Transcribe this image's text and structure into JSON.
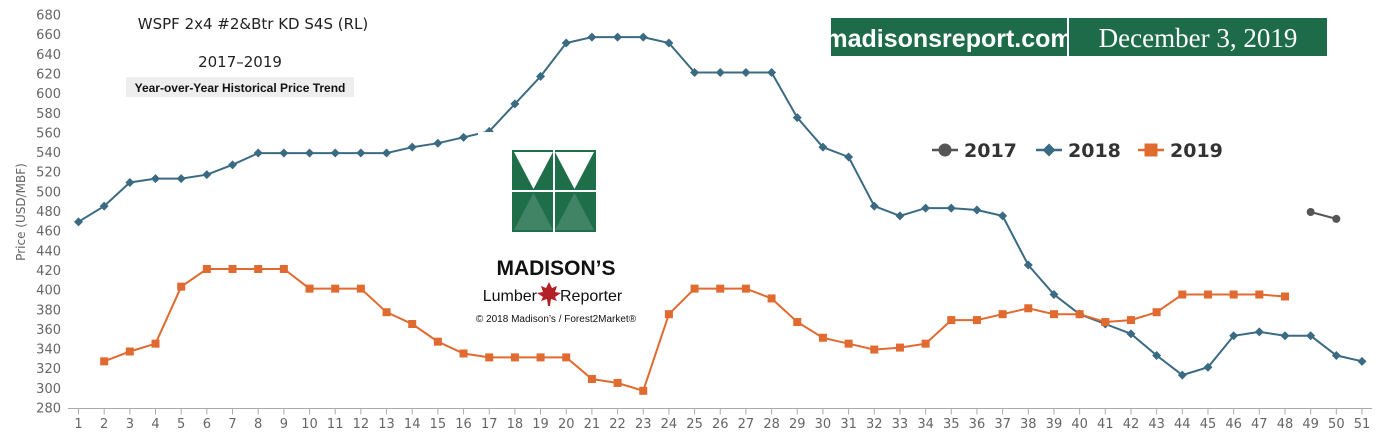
{
  "chart_data": {
    "type": "line",
    "title": "WSPF 2x4 #2&Btr KD S4S (RL)",
    "subtitle": "2017–2019",
    "caption": "Year-over-Year Historical Price Trend",
    "xlabel": "",
    "ylabel": "Price (USD/MBF)",
    "ylim": [
      280,
      680
    ],
    "yticks": [
      280,
      300,
      320,
      340,
      360,
      380,
      400,
      420,
      440,
      460,
      480,
      500,
      520,
      540,
      560,
      580,
      600,
      620,
      640,
      660,
      680
    ],
    "x": [
      1,
      2,
      3,
      4,
      5,
      6,
      7,
      8,
      9,
      10,
      11,
      12,
      13,
      14,
      15,
      16,
      17,
      18,
      19,
      20,
      21,
      22,
      23,
      24,
      25,
      26,
      27,
      28,
      29,
      30,
      31,
      32,
      33,
      34,
      35,
      36,
      37,
      38,
      39,
      40,
      41,
      42,
      43,
      44,
      45,
      46,
      47,
      48,
      49,
      50,
      51
    ],
    "grid": false,
    "legend": "right",
    "series": [
      {
        "name": "2017",
        "color": "#555555",
        "marker": "circle",
        "points": [
          [
            49,
            480
          ],
          [
            50,
            473
          ]
        ]
      },
      {
        "name": "2018",
        "color": "#3a6b82",
        "marker": "diamond",
        "points": [
          [
            1,
            470
          ],
          [
            2,
            486
          ],
          [
            3,
            510
          ],
          [
            4,
            514
          ],
          [
            5,
            514
          ],
          [
            6,
            518
          ],
          [
            7,
            528
          ],
          [
            8,
            540
          ],
          [
            9,
            540
          ],
          [
            10,
            540
          ],
          [
            11,
            540
          ],
          [
            12,
            540
          ],
          [
            13,
            540
          ],
          [
            14,
            546
          ],
          [
            15,
            550
          ],
          [
            16,
            556
          ],
          [
            17,
            562
          ],
          [
            18,
            590
          ],
          [
            19,
            618
          ],
          [
            20,
            652
          ],
          [
            21,
            658
          ],
          [
            22,
            658
          ],
          [
            23,
            658
          ],
          [
            24,
            652
          ],
          [
            25,
            622
          ],
          [
            26,
            622
          ],
          [
            27,
            622
          ],
          [
            28,
            622
          ],
          [
            29,
            576
          ],
          [
            30,
            546
          ],
          [
            31,
            536
          ],
          [
            32,
            486
          ],
          [
            33,
            476
          ],
          [
            34,
            484
          ],
          [
            35,
            484
          ],
          [
            36,
            482
          ],
          [
            37,
            476
          ],
          [
            38,
            426
          ],
          [
            39,
            396
          ],
          [
            40,
            376
          ],
          [
            41,
            366
          ],
          [
            42,
            356
          ],
          [
            43,
            334
          ],
          [
            44,
            314
          ],
          [
            45,
            322
          ],
          [
            46,
            354
          ],
          [
            47,
            358
          ],
          [
            48,
            354
          ],
          [
            49,
            354
          ],
          [
            50,
            334
          ],
          [
            51,
            328
          ]
        ]
      },
      {
        "name": "2019",
        "color": "#e06a2f",
        "marker": "square",
        "points": [
          [
            2,
            328
          ],
          [
            3,
            338
          ],
          [
            4,
            346
          ],
          [
            5,
            404
          ],
          [
            6,
            422
          ],
          [
            7,
            422
          ],
          [
            8,
            422
          ],
          [
            9,
            422
          ],
          [
            10,
            402
          ],
          [
            11,
            402
          ],
          [
            12,
            402
          ],
          [
            13,
            378
          ],
          [
            14,
            366
          ],
          [
            15,
            348
          ],
          [
            16,
            336
          ],
          [
            17,
            332
          ],
          [
            18,
            332
          ],
          [
            19,
            332
          ],
          [
            20,
            332
          ],
          [
            21,
            310
          ],
          [
            22,
            306
          ],
          [
            23,
            298
          ],
          [
            24,
            376
          ],
          [
            25,
            402
          ],
          [
            26,
            402
          ],
          [
            27,
            402
          ],
          [
            28,
            392
          ],
          [
            29,
            368
          ],
          [
            30,
            352
          ],
          [
            31,
            346
          ],
          [
            32,
            340
          ],
          [
            33,
            342
          ],
          [
            34,
            346
          ],
          [
            35,
            370
          ],
          [
            36,
            370
          ],
          [
            37,
            376
          ],
          [
            38,
            382
          ],
          [
            39,
            376
          ],
          [
            40,
            376
          ],
          [
            41,
            368
          ],
          [
            42,
            370
          ],
          [
            43,
            378
          ],
          [
            44,
            396
          ],
          [
            45,
            396
          ],
          [
            46,
            396
          ],
          [
            47,
            396
          ],
          [
            48,
            394
          ]
        ]
      }
    ]
  },
  "banner": {
    "site": "madisonsreport.com",
    "date": "December 3, 2019"
  },
  "logo": {
    "brand": "MADISON’S",
    "word1": "Lumber",
    "word2": "Reporter",
    "copyright": "© 2018 Madison’s / Forest2Market®"
  },
  "colors": {
    "banner_green": "#1e6b4a",
    "logo_green": "#1f6e4a",
    "maple_leaf": "#b32025"
  }
}
